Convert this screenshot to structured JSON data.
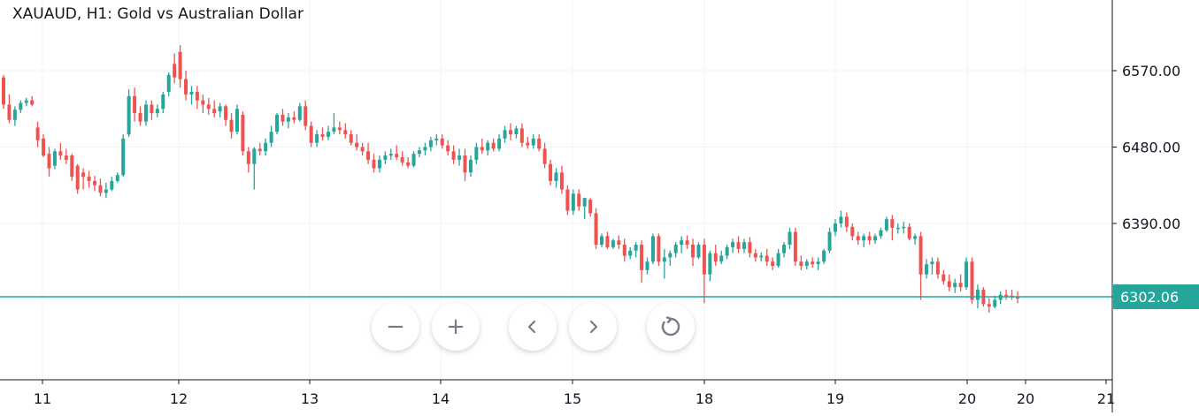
{
  "header": {
    "title": "XAUAUD, H1: Gold vs Australian Dollar"
  },
  "toolbar": {
    "zoom_out_icon": "minus-icon",
    "zoom_out_label": "−",
    "zoom_in_icon": "plus-icon",
    "zoom_in_label": "+",
    "scroll_left_icon": "chevron-left-icon",
    "scroll_right_icon": "chevron-right-icon",
    "reset_icon": "reset-icon"
  },
  "colors": {
    "up": "#26a69a",
    "down": "#ef5350",
    "current_price_line": "#26a69a",
    "grid": "#f0f3fa",
    "axis": "#131722"
  },
  "chart_data": {
    "type": "candlestick",
    "symbol": "XAUAUD",
    "timeframe": "H1",
    "title": "XAUAUD, H1: Gold vs Australian Dollar",
    "y_axis_ticks": [
      6570.0,
      6480.0,
      6390.0
    ],
    "y_tick_labels": [
      "6570.00",
      "6480.00",
      "6390.00"
    ],
    "x_tick_labels": [
      "11",
      "12",
      "13",
      "14",
      "15",
      "18",
      "19",
      "20",
      "20",
      "21"
    ],
    "ylim": [
      6240,
      6625
    ],
    "current_price": 6302.06,
    "current_price_label": "6302.06",
    "grid": true,
    "ohlc": [
      [
        6562,
        6565,
        6525,
        6530
      ],
      [
        6530,
        6542,
        6508,
        6512
      ],
      [
        6512,
        6528,
        6505,
        6524
      ],
      [
        6524,
        6535,
        6520,
        6532
      ],
      [
        6532,
        6538,
        6528,
        6535
      ],
      [
        6535,
        6540,
        6528,
        6530
      ],
      [
        6503,
        6510,
        6480,
        6488
      ],
      [
        6490,
        6495,
        6468,
        6470
      ],
      [
        6472,
        6480,
        6445,
        6455
      ],
      [
        6458,
        6478,
        6454,
        6475
      ],
      [
        6475,
        6485,
        6465,
        6470
      ],
      [
        6470,
        6478,
        6460,
        6465
      ],
      [
        6470,
        6472,
        6440,
        6445
      ],
      [
        6458,
        6460,
        6425,
        6430
      ],
      [
        6450,
        6455,
        6430,
        6445
      ],
      [
        6445,
        6452,
        6432,
        6440
      ],
      [
        6440,
        6446,
        6428,
        6435
      ],
      [
        6435,
        6443,
        6422,
        6426
      ],
      [
        6426,
        6438,
        6420,
        6430
      ],
      [
        6430,
        6445,
        6428,
        6440
      ],
      [
        6440,
        6450,
        6438,
        6447
      ],
      [
        6447,
        6495,
        6445,
        6490
      ],
      [
        6495,
        6548,
        6492,
        6540
      ],
      [
        6540,
        6550,
        6510,
        6520
      ],
      [
        6520,
        6528,
        6505,
        6510
      ],
      [
        6510,
        6535,
        6505,
        6530
      ],
      [
        6530,
        6535,
        6512,
        6520
      ],
      [
        6520,
        6530,
        6515,
        6525
      ],
      [
        6525,
        6545,
        6520,
        6542
      ],
      [
        6545,
        6568,
        6540,
        6565
      ],
      [
        6578,
        6590,
        6555,
        6562
      ],
      [
        6592,
        6600,
        6550,
        6560
      ],
      [
        6560,
        6570,
        6535,
        6542
      ],
      [
        6542,
        6552,
        6530,
        6545
      ],
      [
        6545,
        6552,
        6525,
        6535
      ],
      [
        6535,
        6542,
        6520,
        6530
      ],
      [
        6530,
        6538,
        6518,
        6525
      ],
      [
        6525,
        6535,
        6515,
        6520
      ],
      [
        6522,
        6532,
        6515,
        6528
      ],
      [
        6528,
        6530,
        6505,
        6512
      ],
      [
        6512,
        6520,
        6490,
        6498
      ],
      [
        6498,
        6530,
        6495,
        6525
      ],
      [
        6518,
        6522,
        6470,
        6475
      ],
      [
        6475,
        6480,
        6450,
        6460
      ],
      [
        6460,
        6480,
        6430,
        6478
      ],
      [
        6478,
        6485,
        6470,
        6475
      ],
      [
        6475,
        6490,
        6470,
        6485
      ],
      [
        6485,
        6505,
        6480,
        6498
      ],
      [
        6498,
        6520,
        6495,
        6518
      ],
      [
        6518,
        6525,
        6505,
        6510
      ],
      [
        6510,
        6520,
        6502,
        6515
      ],
      [
        6515,
        6522,
        6508,
        6512
      ],
      [
        6512,
        6532,
        6510,
        6528
      ],
      [
        6528,
        6535,
        6500,
        6505
      ],
      [
        6505,
        6510,
        6480,
        6485
      ],
      [
        6485,
        6500,
        6480,
        6495
      ],
      [
        6495,
        6503,
        6488,
        6492
      ],
      [
        6492,
        6505,
        6488,
        6498
      ],
      [
        6498,
        6520,
        6495,
        6503
      ],
      [
        6503,
        6510,
        6495,
        6500
      ],
      [
        6500,
        6508,
        6490,
        6495
      ],
      [
        6495,
        6500,
        6482,
        6485
      ],
      [
        6485,
        6495,
        6476,
        6480
      ],
      [
        6480,
        6485,
        6470,
        6475
      ],
      [
        6475,
        6485,
        6460,
        6465
      ],
      [
        6465,
        6472,
        6450,
        6455
      ],
      [
        6455,
        6470,
        6450,
        6465
      ],
      [
        6465,
        6475,
        6460,
        6470
      ],
      [
        6470,
        6478,
        6465,
        6472
      ],
      [
        6472,
        6482,
        6465,
        6468
      ],
      [
        6468,
        6475,
        6458,
        6462
      ],
      [
        6462,
        6468,
        6455,
        6458
      ],
      [
        6458,
        6475,
        6456,
        6472
      ],
      [
        6472,
        6480,
        6468,
        6476
      ],
      [
        6476,
        6485,
        6470,
        6480
      ],
      [
        6480,
        6492,
        6475,
        6488
      ],
      [
        6488,
        6495,
        6482,
        6490
      ],
      [
        6490,
        6495,
        6478,
        6482
      ],
      [
        6482,
        6488,
        6470,
        6475
      ],
      [
        6475,
        6482,
        6460,
        6465
      ],
      [
        6465,
        6478,
        6458,
        6470
      ],
      [
        6470,
        6478,
        6440,
        6450
      ],
      [
        6450,
        6470,
        6445,
        6465
      ],
      [
        6465,
        6485,
        6460,
        6480
      ],
      [
        6480,
        6490,
        6472,
        6476
      ],
      [
        6476,
        6488,
        6470,
        6485
      ],
      [
        6485,
        6490,
        6475,
        6478
      ],
      [
        6478,
        6495,
        6475,
        6490
      ],
      [
        6490,
        6505,
        6485,
        6500
      ],
      [
        6500,
        6508,
        6488,
        6495
      ],
      [
        6495,
        6505,
        6490,
        6502
      ],
      [
        6502,
        6508,
        6480,
        6485
      ],
      [
        6485,
        6492,
        6478,
        6482
      ],
      [
        6482,
        6495,
        6478,
        6490
      ],
      [
        6490,
        6495,
        6475,
        6478
      ],
      [
        6478,
        6485,
        6455,
        6460
      ],
      [
        6460,
        6465,
        6435,
        6440
      ],
      [
        6440,
        6455,
        6432,
        6450
      ],
      [
        6450,
        6458,
        6425,
        6430
      ],
      [
        6430,
        6435,
        6400,
        6405
      ],
      [
        6405,
        6430,
        6400,
        6425
      ],
      [
        6425,
        6430,
        6405,
        6410
      ],
      [
        6410,
        6420,
        6395,
        6420
      ],
      [
        6418,
        6420,
        6398,
        6402
      ],
      [
        6402,
        6408,
        6360,
        6365
      ],
      [
        6365,
        6378,
        6362,
        6375
      ],
      [
        6375,
        6380,
        6360,
        6362
      ],
      [
        6362,
        6372,
        6360,
        6370
      ],
      [
        6370,
        6376,
        6360,
        6365
      ],
      [
        6365,
        6372,
        6345,
        6352
      ],
      [
        6352,
        6362,
        6348,
        6358
      ],
      [
        6358,
        6368,
        6350,
        6365
      ],
      [
        6365,
        6370,
        6320,
        6335
      ],
      [
        6335,
        6350,
        6330,
        6345
      ],
      [
        6345,
        6378,
        6342,
        6375
      ],
      [
        6375,
        6378,
        6340,
        6345
      ],
      [
        6345,
        6360,
        6325,
        6350
      ],
      [
        6350,
        6358,
        6340,
        6355
      ],
      [
        6355,
        6368,
        6350,
        6365
      ],
      [
        6365,
        6375,
        6355,
        6370
      ],
      [
        6370,
        6376,
        6360,
        6365
      ],
      [
        6365,
        6372,
        6340,
        6350
      ],
      [
        6350,
        6368,
        6348,
        6365
      ],
      [
        6365,
        6372,
        6296,
        6330
      ],
      [
        6330,
        6358,
        6322,
        6355
      ],
      [
        6355,
        6365,
        6340,
        6345
      ],
      [
        6345,
        6358,
        6342,
        6352
      ],
      [
        6352,
        6365,
        6348,
        6362
      ],
      [
        6362,
        6372,
        6355,
        6368
      ],
      [
        6368,
        6375,
        6355,
        6360
      ],
      [
        6360,
        6372,
        6355,
        6368
      ],
      [
        6368,
        6374,
        6350,
        6355
      ],
      [
        6355,
        6360,
        6345,
        6350
      ],
      [
        6350,
        6356,
        6345,
        6352
      ],
      [
        6352,
        6360,
        6340,
        6345
      ],
      [
        6345,
        6350,
        6335,
        6340
      ],
      [
        6340,
        6360,
        6338,
        6355
      ],
      [
        6355,
        6368,
        6350,
        6365
      ],
      [
        6365,
        6385,
        6360,
        6380
      ],
      [
        6380,
        6385,
        6340,
        6345
      ],
      [
        6345,
        6352,
        6335,
        6340
      ],
      [
        6340,
        6348,
        6336,
        6345
      ],
      [
        6345,
        6350,
        6338,
        6342
      ],
      [
        6342,
        6350,
        6335,
        6345
      ],
      [
        6345,
        6360,
        6342,
        6358
      ],
      [
        6358,
        6385,
        6355,
        6380
      ],
      [
        6380,
        6395,
        6375,
        6390
      ],
      [
        6390,
        6405,
        6385,
        6398
      ],
      [
        6398,
        6403,
        6380,
        6386
      ],
      [
        6386,
        6390,
        6370,
        6375
      ],
      [
        6375,
        6380,
        6365,
        6370
      ],
      [
        6370,
        6378,
        6362,
        6375
      ],
      [
        6375,
        6380,
        6365,
        6370
      ],
      [
        6370,
        6378,
        6366,
        6375
      ],
      [
        6375,
        6385,
        6372,
        6382
      ],
      [
        6382,
        6398,
        6380,
        6395
      ],
      [
        6395,
        6400,
        6370,
        6385
      ],
      [
        6385,
        6390,
        6378,
        6385
      ],
      [
        6385,
        6392,
        6378,
        6386
      ],
      [
        6386,
        6390,
        6370,
        6372
      ],
      [
        6372,
        6378,
        6365,
        6375
      ],
      [
        6375,
        6380,
        6300,
        6330
      ],
      [
        6330,
        6348,
        6325,
        6342
      ],
      [
        6342,
        6350,
        6330,
        6345
      ],
      [
        6345,
        6350,
        6325,
        6330
      ],
      [
        6330,
        6335,
        6318,
        6322
      ],
      [
        6322,
        6330,
        6310,
        6315
      ],
      [
        6315,
        6325,
        6308,
        6320
      ],
      [
        6320,
        6330,
        6310,
        6315
      ],
      [
        6315,
        6350,
        6312,
        6345
      ],
      [
        6345,
        6350,
        6295,
        6300
      ],
      [
        6300,
        6318,
        6290,
        6312
      ],
      [
        6312,
        6315,
        6292,
        6295
      ],
      [
        6295,
        6302,
        6285,
        6292
      ],
      [
        6292,
        6305,
        6290,
        6300
      ],
      [
        6300,
        6310,
        6295,
        6306
      ],
      [
        6306,
        6312,
        6300,
        6305
      ],
      [
        6305,
        6312,
        6300,
        6303
      ],
      [
        6303,
        6310,
        6296,
        6302
      ]
    ]
  }
}
